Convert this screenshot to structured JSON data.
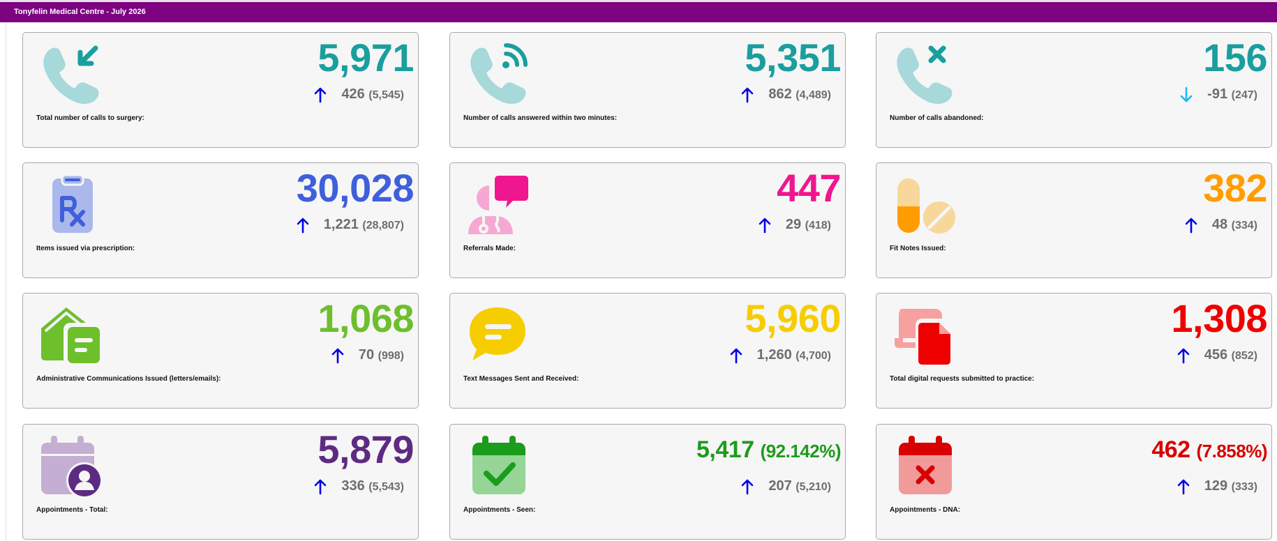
{
  "header": {
    "title": "Tonyfelin Medical Centre - July 2026"
  },
  "colors": {
    "header": "#7d0380",
    "teal": "#1a9e9e",
    "blue": "#3f5fdb",
    "pink": "#f0168f",
    "orange": "#ff9d00",
    "green": "#6dbf2c",
    "yellow": "#f6cd00",
    "red": "#ee0000",
    "purple": "#5e2b82",
    "seen_green": "#1c9c1c",
    "dna_red": "#d80000",
    "arrow_up": "#0000e6",
    "arrow_down": "#19b9f2"
  },
  "cards": [
    {
      "label": "Total number of calls to surgery:",
      "value": "5,971",
      "change": "426",
      "previous": "(5,545)",
      "direction": "up",
      "icon": "phone-incoming-icon"
    },
    {
      "label": "Number of calls answered within two minutes:",
      "value": "5,351",
      "change": "862",
      "previous": "(4,489)",
      "direction": "up",
      "icon": "phone-answered-icon"
    },
    {
      "label": "Number of calls abandoned:",
      "value": "156",
      "change": "-91",
      "previous": "(247)",
      "direction": "down",
      "icon": "phone-abandoned-icon"
    },
    {
      "label": "Items issued via prescription:",
      "value": "30,028",
      "change": "1,221",
      "previous": "(28,807)",
      "direction": "up",
      "icon": "prescription-clipboard-icon"
    },
    {
      "label": "Referrals Made:",
      "value": "447",
      "change": "29",
      "previous": "(418)",
      "direction": "up",
      "icon": "doctor-referral-icon"
    },
    {
      "label": "Fit Notes Issued:",
      "value": "382",
      "change": "48",
      "previous": "(334)",
      "direction": "up",
      "icon": "pills-icon"
    },
    {
      "label": "Administrative Communications Issued (letters/emails):",
      "value": "1,068",
      "change": "70",
      "previous": "(998)",
      "direction": "up",
      "icon": "mail-letter-icon"
    },
    {
      "label": "Text Messages Sent and Received:",
      "value": "5,960",
      "change": "1,260",
      "previous": "(4,700)",
      "direction": "up",
      "icon": "speech-bubble-icon"
    },
    {
      "label": "Total digital requests submitted to practice:",
      "value": "1,308",
      "change": "456",
      "previous": "(852)",
      "direction": "up",
      "icon": "digital-request-icon"
    },
    {
      "label": "Appointments - Total:",
      "value": "5,879",
      "change": "336",
      "previous": "(5,543)",
      "direction": "up",
      "icon": "calendar-user-icon"
    },
    {
      "label": "Appointments - Seen:",
      "value": "5,417",
      "percent": "(92.142%)",
      "change": "207",
      "previous": "(5,210)",
      "direction": "up",
      "icon": "calendar-check-icon"
    },
    {
      "label": "Appointments - DNA:",
      "value": "462",
      "percent": "(7.858%)",
      "change": "129",
      "previous": "(333)",
      "direction": "up",
      "icon": "calendar-cross-icon"
    }
  ]
}
